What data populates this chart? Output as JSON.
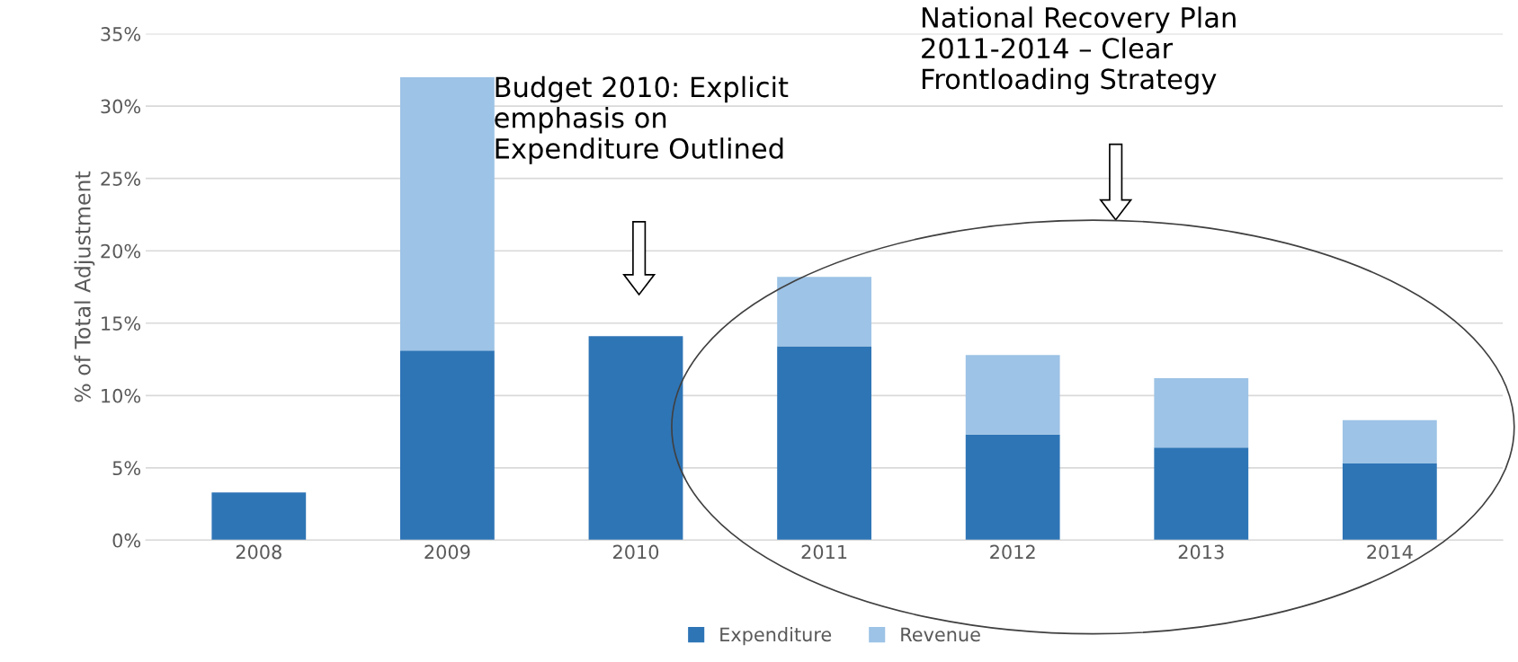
{
  "chart_data": {
    "type": "bar",
    "stacked": true,
    "ylabel": "% of Total Adjustment",
    "categories": [
      "2008",
      "2009",
      "2010",
      "2011",
      "2012",
      "2013",
      "2014"
    ],
    "series": [
      {
        "name": "Expenditure",
        "color": "#2e75b6",
        "values": [
          3.3,
          13.1,
          14.1,
          13.4,
          7.3,
          6.4,
          5.3
        ]
      },
      {
        "name": "Revenue",
        "color": "#9dc3e6",
        "values": [
          null,
          18.9,
          null,
          4.8,
          5.5,
          4.8,
          3.0
        ]
      }
    ],
    "ylim": [
      0,
      35
    ],
    "yticks": [
      {
        "value": 0,
        "label": "0%"
      },
      {
        "value": 5,
        "label": "5%"
      },
      {
        "value": 10,
        "label": "10%"
      },
      {
        "value": 15,
        "label": "15%"
      },
      {
        "value": 20,
        "label": "20%"
      },
      {
        "value": 25,
        "label": "25%"
      },
      {
        "value": 30,
        "label": "30%"
      },
      {
        "value": 35,
        "label": "35%"
      }
    ],
    "grid": "y",
    "legend": "bottom",
    "annotations": [
      "Budget 2010: Explicit\nemphasis on\nExpenditure Outlined",
      "National Recovery Plan\n2011-2014 – Clear\nFrontloading Strategy"
    ]
  }
}
